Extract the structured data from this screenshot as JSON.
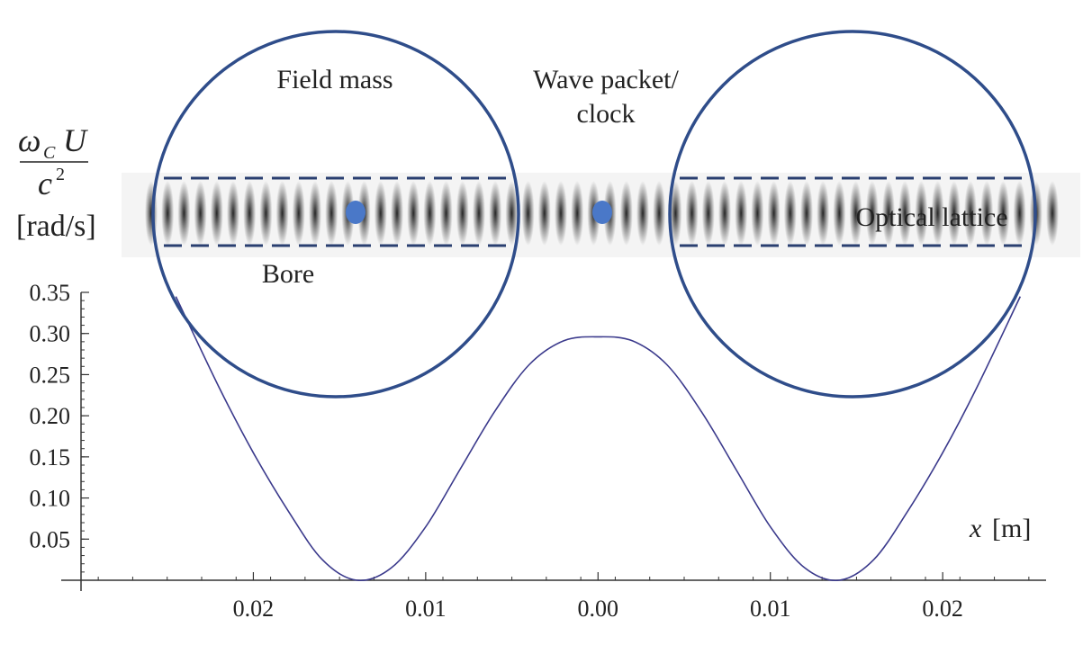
{
  "chart_data": {
    "type": "line",
    "title": "",
    "xlabel_var": "x",
    "xlabel_unit": "[m]",
    "ylabel_num_omega": "ω",
    "ylabel_num_sub": "C",
    "ylabel_num_U": "U",
    "ylabel_den_c": "c",
    "ylabel_den_exp": "2",
    "ylabel_unit": "[rad/s]",
    "xlim": [
      -0.03,
      0.026
    ],
    "ylim": [
      0.0,
      0.35
    ],
    "grid": false,
    "x_ticks": [
      -0.02,
      -0.01,
      0.0,
      0.01,
      0.02
    ],
    "x_tick_labels": [
      "0.02",
      "0.01",
      "0.00",
      "0.01",
      "0.02"
    ],
    "y_ticks": [
      0.05,
      0.1,
      0.15,
      0.2,
      0.25,
      0.3,
      0.35
    ],
    "y_tick_labels": [
      "0.05",
      "0.10",
      "0.15",
      "0.20",
      "0.25",
      "0.30",
      "0.35"
    ],
    "series": [
      {
        "x": [
          -0.0245,
          -0.022,
          -0.02,
          -0.018,
          -0.016,
          -0.014,
          -0.012,
          -0.01,
          -0.008,
          -0.006,
          -0.004,
          -0.002,
          0.0,
          0.002,
          0.004,
          0.006,
          0.008,
          0.01,
          0.012,
          0.014,
          0.016,
          0.018,
          0.02,
          0.022,
          0.0245
        ],
        "y": [
          0.345,
          0.235,
          0.155,
          0.085,
          0.025,
          0.0,
          0.015,
          0.065,
          0.135,
          0.205,
          0.262,
          0.291,
          0.296,
          0.291,
          0.262,
          0.205,
          0.135,
          0.065,
          0.015,
          0.0,
          0.025,
          0.085,
          0.155,
          0.235,
          0.345
        ]
      }
    ],
    "annotations": {
      "field_mass": "Field mass",
      "wave_packet_line1": "Wave packet/",
      "wave_packet_line2": "clock",
      "bore": "Bore",
      "optical_lattice": "Optical lattice"
    },
    "colors": {
      "curve": "#3b3a8c",
      "circles": "#2f4d8a",
      "dashes": "#2a3f70",
      "dots": "#4a78c8",
      "lattice": "#1a1a1a",
      "axis": "#333333"
    }
  }
}
